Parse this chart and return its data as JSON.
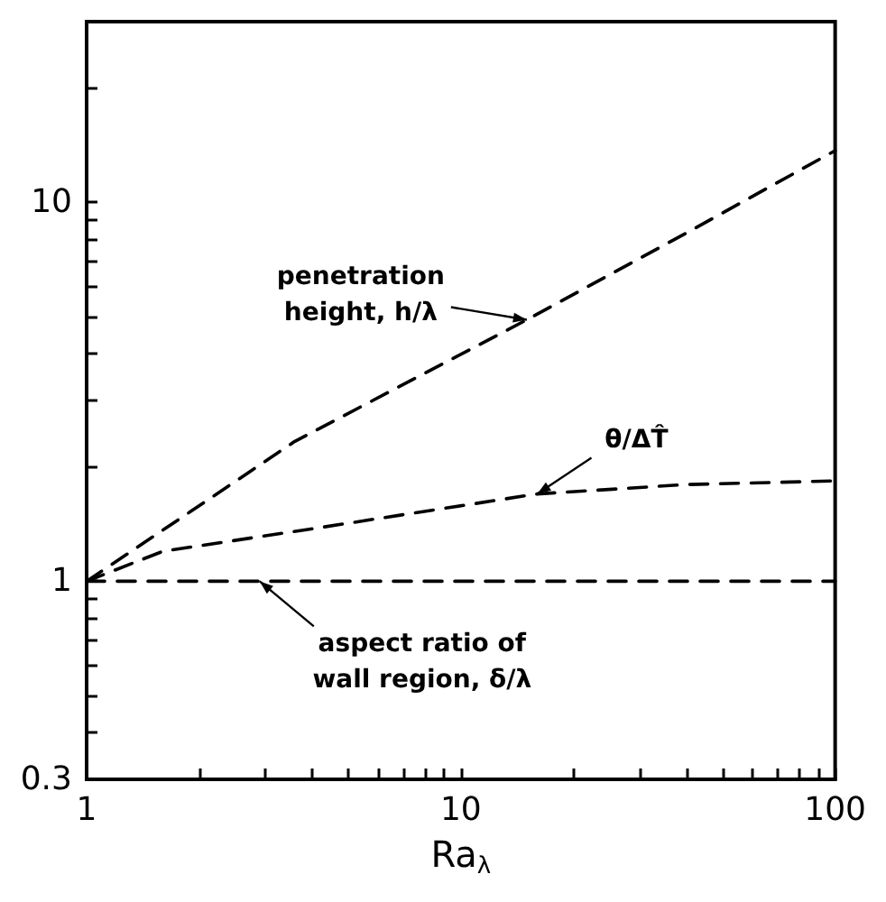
{
  "chart_data": {
    "type": "line",
    "xlabel": "Ra$_{λ}$",
    "log": "xy",
    "xlim": [
      1,
      100
    ],
    "ylim": [
      0.3,
      30
    ],
    "xticks": [
      1,
      {
        "value": 2,
        "label": null
      },
      {
        "value": 3,
        "label": null
      },
      {
        "value": 4,
        "label": null
      },
      {
        "value": 5,
        "label": null
      },
      {
        "value": 6,
        "label": null
      },
      {
        "value": 7,
        "label": null
      },
      {
        "value": 8,
        "label": null
      },
      {
        "value": 9,
        "label": null
      },
      10,
      {
        "value": 20,
        "label": null
      },
      {
        "value": 30,
        "label": null
      },
      {
        "value": 40,
        "label": null
      },
      {
        "value": 50,
        "label": null
      },
      {
        "value": 60,
        "label": null
      },
      {
        "value": 70,
        "label": null
      },
      {
        "value": 80,
        "label": null
      },
      {
        "value": 90,
        "label": null
      },
      100
    ],
    "yticks": [
      0.3,
      {
        "value": 0.4,
        "label": null
      },
      {
        "value": 0.5,
        "label": null
      },
      {
        "value": 0.6,
        "label": null
      },
      {
        "value": 0.7,
        "label": null
      },
      {
        "value": 0.8,
        "label": null
      },
      {
        "value": 0.9,
        "label": null
      },
      1,
      {
        "value": 2,
        "label": null
      },
      {
        "value": 3,
        "label": null
      },
      {
        "value": 4,
        "label": null
      },
      {
        "value": 5,
        "label": null
      },
      {
        "value": 6,
        "label": null
      },
      {
        "value": 7,
        "label": null
      },
      {
        "value": 8,
        "label": null
      },
      {
        "value": 9,
        "label": null
      },
      10,
      {
        "value": 20,
        "label": null
      },
      {
        "value": 30,
        "label": null
      }
    ],
    "grid": false,
    "marker": "none",
    "line_style": "dashed",
    "series": [
      {
        "color": "#000000",
        "x": [
          1,
          1.9,
          3.6,
          15,
          40,
          100
        ],
        "values": [
          1,
          1.53,
          2.34,
          4.9,
          8.3,
          13.7
        ]
      },
      {
        "color": "#000000",
        "x": [
          1,
          1.6,
          3.9,
          16,
          40,
          100
        ],
        "values": [
          1,
          1.2,
          1.37,
          1.7,
          1.8,
          1.84
        ]
      },
      {
        "color": "#000000",
        "x": [
          1,
          100
        ],
        "values": [
          1,
          1
        ]
      }
    ],
    "annotations": [
      {
        "text": "penetration\nheight, h/λ",
        "x": 15,
        "y": 4.9
      },
      {
        "text": "θ/ΔT̂",
        "x": 16,
        "y": 1.7
      },
      {
        "text": "aspect ratio of\nwall region, δ/λ",
        "x": 2.9,
        "y": 1
      }
    ]
  }
}
